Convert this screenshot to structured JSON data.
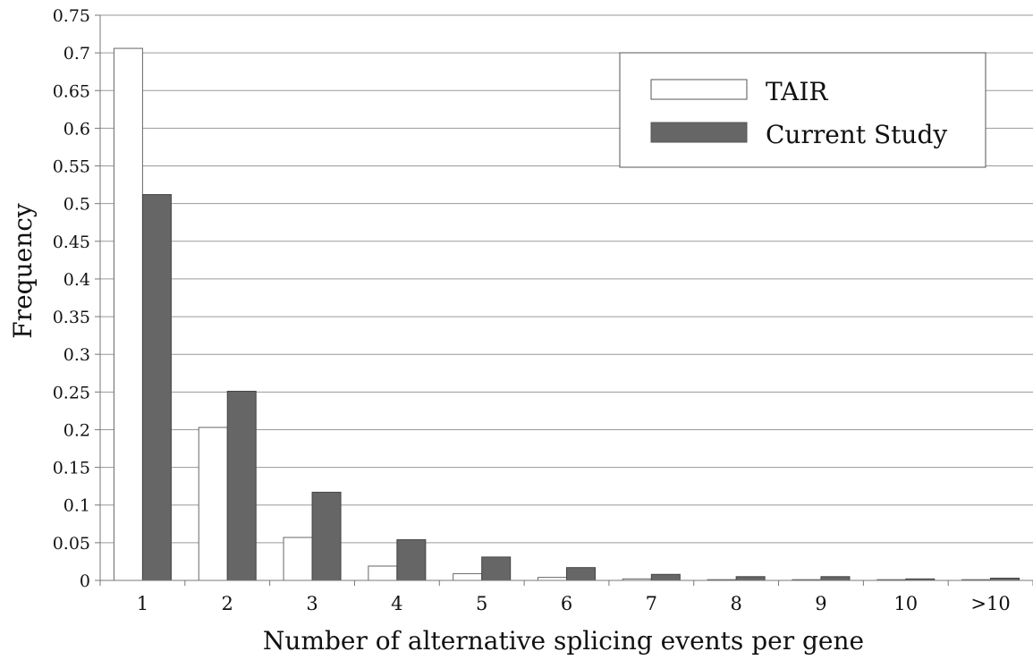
{
  "chart_data": {
    "type": "bar",
    "title": "",
    "xlabel": "Number of alternative splicing events per gene",
    "ylabel": "Frequency",
    "categories": [
      "1",
      "2",
      "3",
      "4",
      "5",
      "6",
      "7",
      "8",
      "9",
      "10",
      ">10"
    ],
    "series": [
      {
        "name": "TAIR",
        "color": "#ffffff",
        "values": [
          0.706,
          0.203,
          0.057,
          0.019,
          0.009,
          0.004,
          0.002,
          0.001,
          0.001,
          0.001,
          0.001
        ]
      },
      {
        "name": "Current Study",
        "color": "#666666",
        "values": [
          0.512,
          0.251,
          0.117,
          0.054,
          0.031,
          0.017,
          0.008,
          0.005,
          0.005,
          0.002,
          0.003
        ]
      }
    ],
    "ylim": [
      0,
      0.75
    ],
    "yticks": [
      "0",
      "0.05",
      "0.1",
      "0.15",
      "0.2",
      "0.25",
      "0.3",
      "0.35",
      "0.4",
      "0.45",
      "0.5",
      "0.55",
      "0.6",
      "0.65",
      "0.7",
      "0.75"
    ],
    "grid": true,
    "legend_position": "top-right"
  }
}
